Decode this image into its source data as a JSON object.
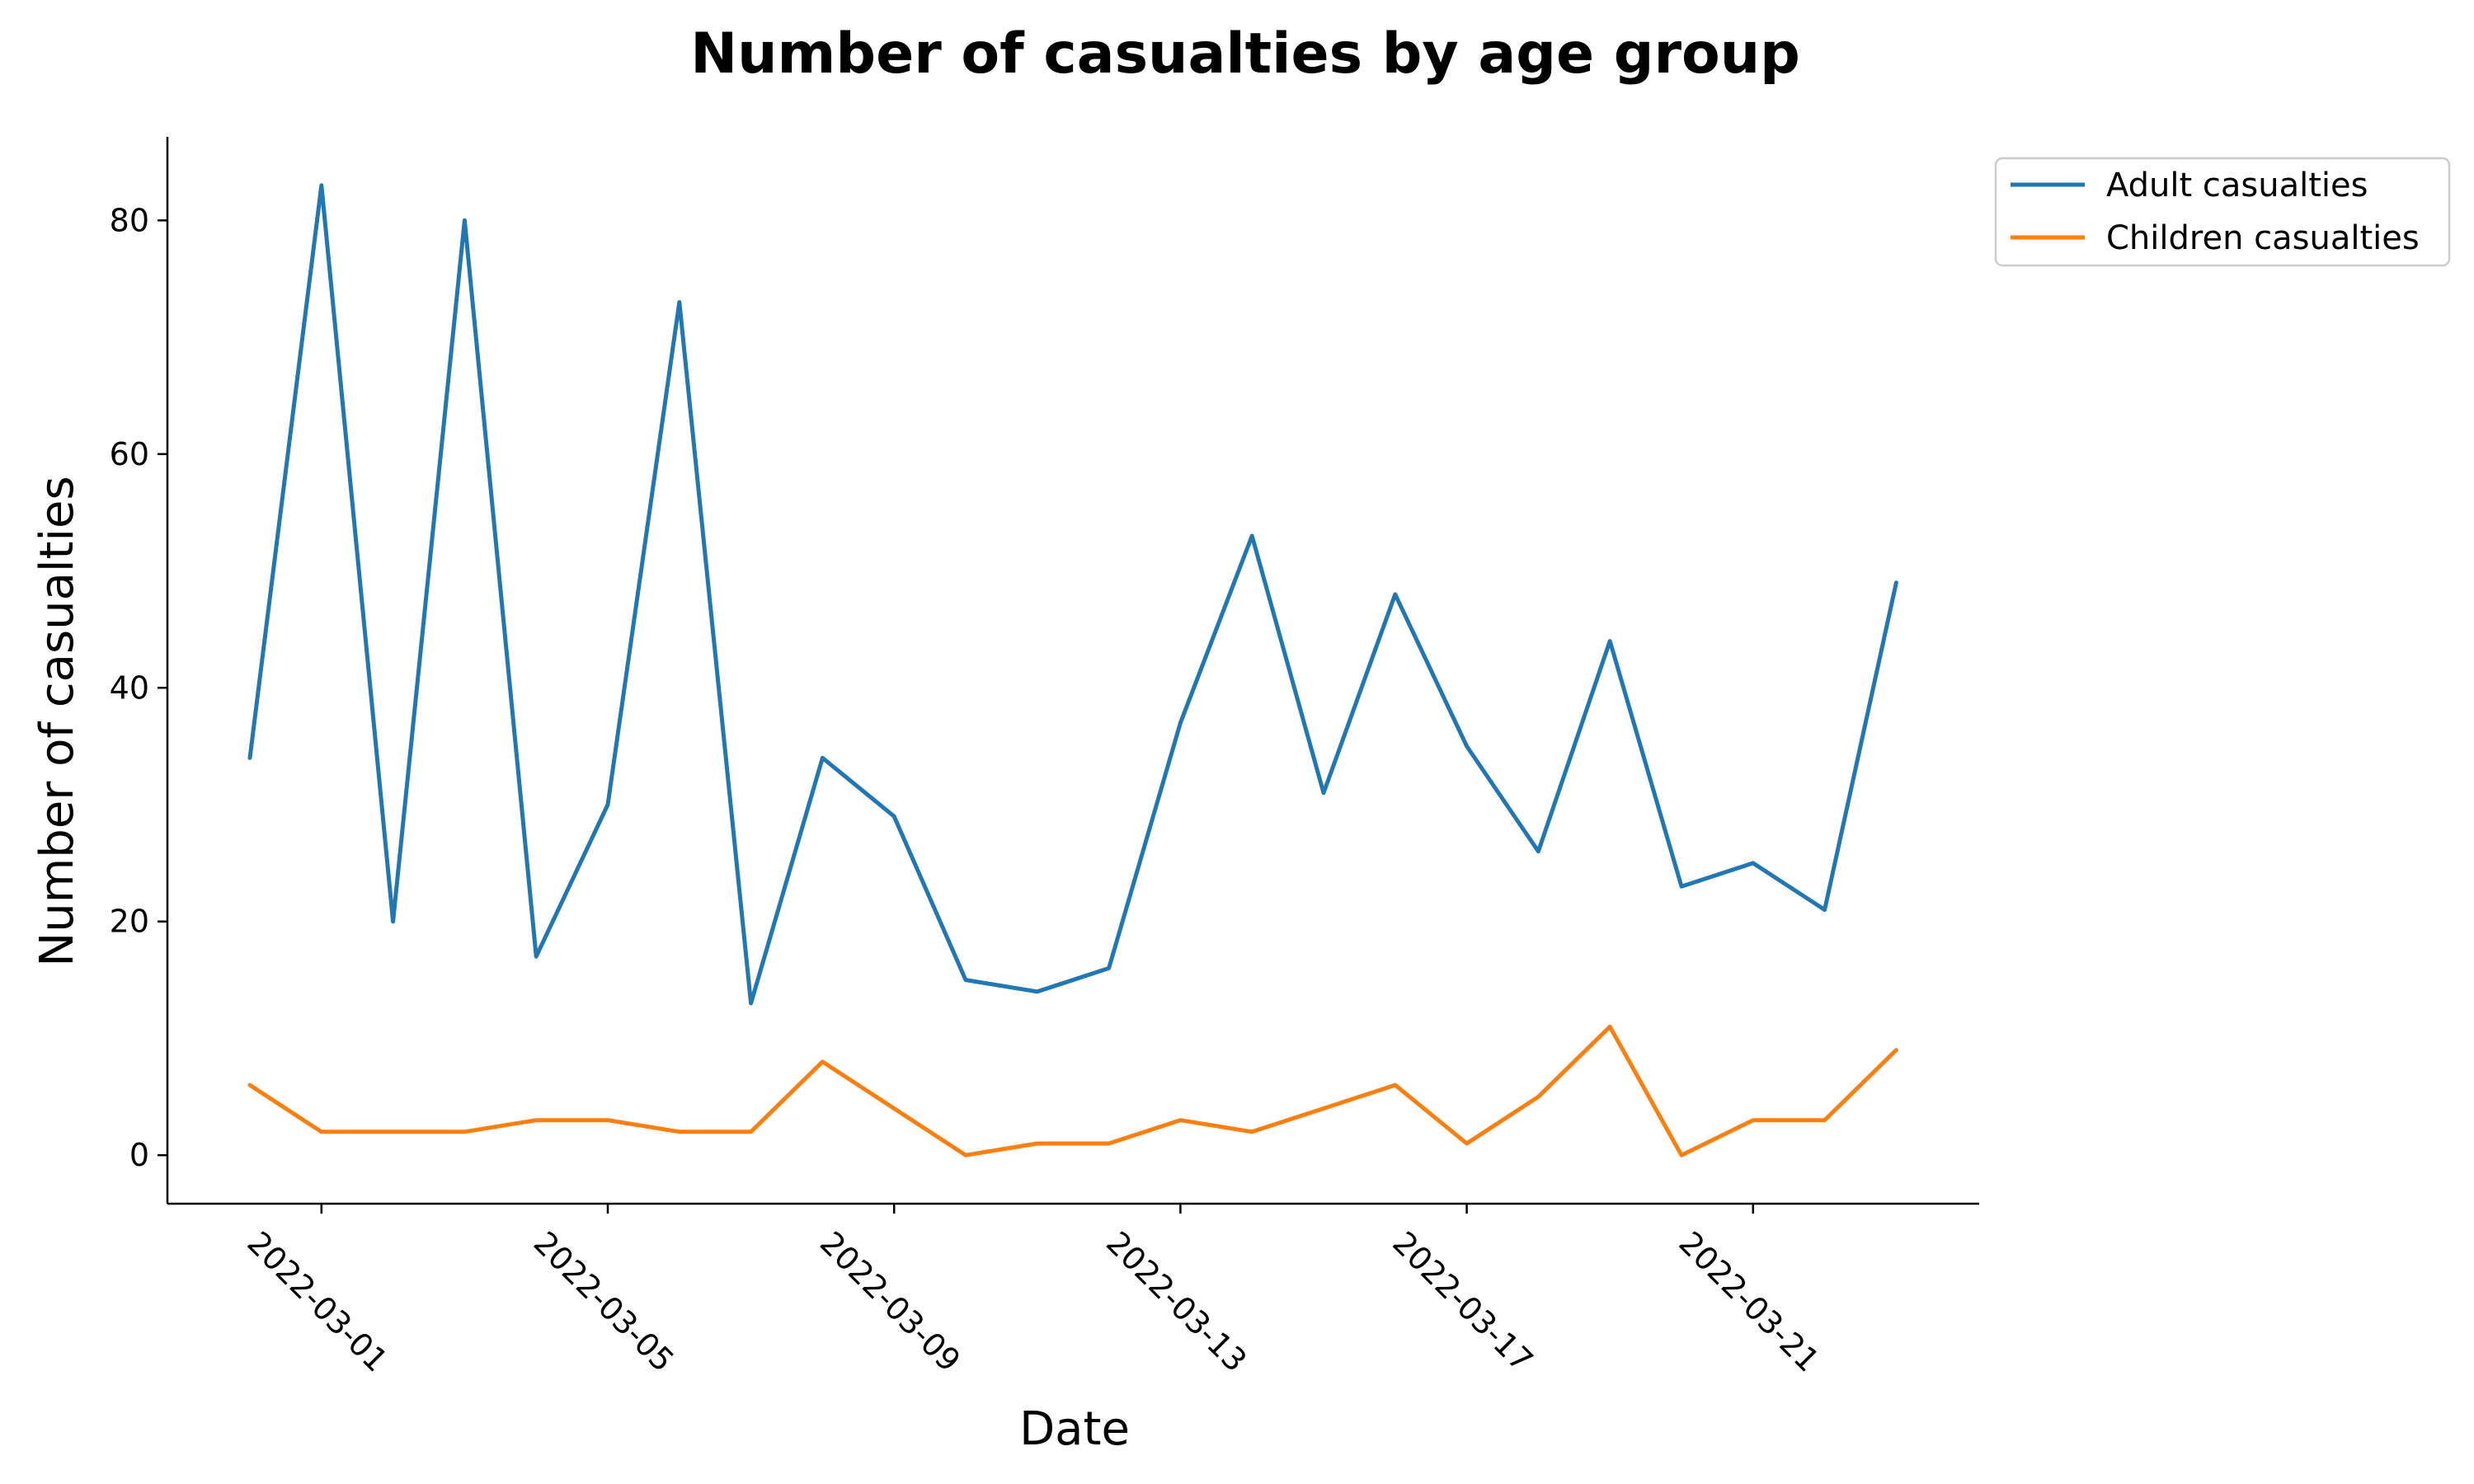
{
  "chart_data": {
    "type": "line",
    "title": "Number of casualties by age group",
    "xlabel": "Date",
    "ylabel": "Number of casualties",
    "x": [
      "2022-02-28",
      "2022-03-01",
      "2022-03-02",
      "2022-03-03",
      "2022-03-04",
      "2022-03-05",
      "2022-03-06",
      "2022-03-07",
      "2022-03-08",
      "2022-03-09",
      "2022-03-10",
      "2022-03-11",
      "2022-03-12",
      "2022-03-13",
      "2022-03-14",
      "2022-03-15",
      "2022-03-16",
      "2022-03-17",
      "2022-03-18",
      "2022-03-19",
      "2022-03-20",
      "2022-03-21",
      "2022-03-22",
      "2022-03-23"
    ],
    "series": [
      {
        "name": "Adult casualties",
        "color": "#1f77b4",
        "values": [
          34,
          83,
          20,
          80,
          17,
          30,
          73,
          13,
          34,
          29,
          15,
          14,
          16,
          37,
          53,
          31,
          48,
          35,
          26,
          44,
          23,
          25,
          21,
          49
        ]
      },
      {
        "name": "Children casualties",
        "color": "#ff7f0e",
        "values": [
          6,
          2,
          2,
          2,
          3,
          3,
          2,
          2,
          8,
          4,
          0,
          1,
          1,
          3,
          2,
          4,
          6,
          1,
          5,
          11,
          0,
          3,
          3,
          9
        ]
      }
    ],
    "xticks": [
      "2022-03-01",
      "2022-03-05",
      "2022-03-09",
      "2022-03-13",
      "2022-03-17",
      "2022-03-21"
    ],
    "yticks": [
      0,
      20,
      40,
      60,
      80
    ],
    "ylim": [
      -4.15,
      87.15
    ],
    "grid": false,
    "legend": "upper-right-outside"
  }
}
